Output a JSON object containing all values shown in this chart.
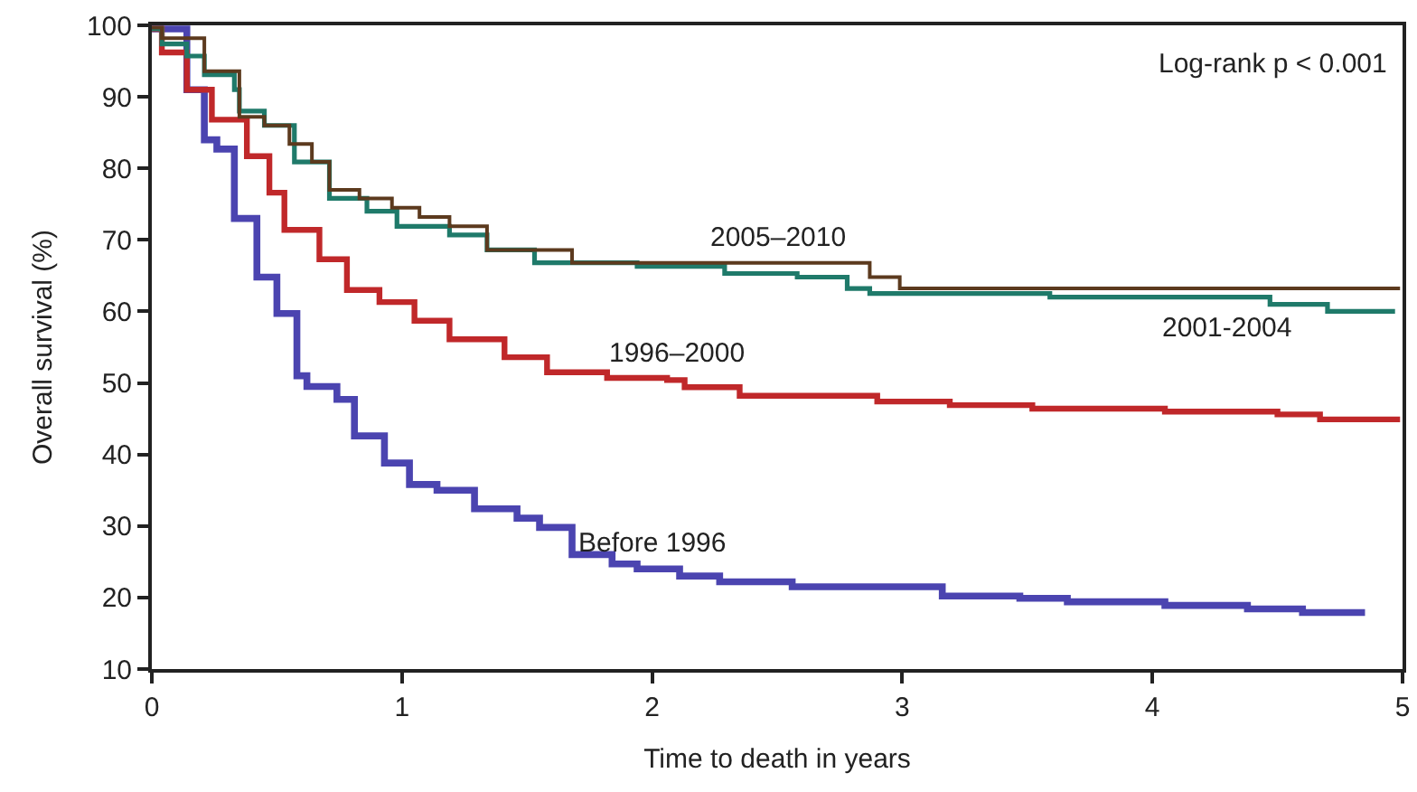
{
  "chart_data": {
    "type": "step",
    "xlabel": "Time to death in years",
    "ylabel": "Overall survival (%)",
    "xlim": [
      0,
      5
    ],
    "xticks": [
      0,
      1,
      2,
      3,
      4,
      5
    ],
    "ylim": [
      10,
      100
    ],
    "yticks": [
      10,
      20,
      30,
      40,
      50,
      60,
      70,
      80,
      90,
      100
    ],
    "legend": false,
    "marker": "none",
    "line_style": "solid",
    "series": [
      {
        "name": "Before 1996",
        "color": "#4b44b0",
        "x": [
          0,
          0.14,
          0.21,
          0.26,
          0.33,
          0.42,
          0.5,
          0.58,
          0.62,
          0.74,
          0.81,
          0.93,
          1.03,
          1.14,
          1.29,
          1.46,
          1.55,
          1.68,
          1.84,
          1.94,
          2.11,
          2.27,
          2.56,
          3.09,
          3.16,
          3.47,
          3.66,
          4.05,
          4.38,
          4.6,
          4.85
        ],
        "values": [
          99.5,
          91,
          84,
          82.7,
          73,
          64.8,
          59.7,
          51,
          49.5,
          47.7,
          42.6,
          38.8,
          35.8,
          35,
          32.4,
          31.1,
          29.8,
          26,
          24.7,
          24,
          23,
          22.2,
          21.5,
          21.5,
          20.2,
          19.9,
          19.4,
          18.9,
          18.4,
          17.9,
          17.9
        ]
      },
      {
        "name": "1996–2000",
        "color": "#c0282a",
        "x": [
          0,
          0.04,
          0.14,
          0.24,
          0.38,
          0.47,
          0.53,
          0.67,
          0.78,
          0.91,
          1.05,
          1.19,
          1.41,
          1.58,
          1.82,
          2.06,
          2.13,
          2.35,
          2.9,
          3.19,
          3.52,
          4.05,
          4.5,
          4.67,
          4.99
        ],
        "values": [
          99.5,
          96.2,
          91,
          86.8,
          81.7,
          76.6,
          71.4,
          67.3,
          63,
          61.3,
          58.7,
          56.1,
          53.6,
          51.5,
          50.7,
          50.4,
          49.4,
          48.2,
          47.4,
          46.9,
          46.4,
          46,
          45.6,
          44.9,
          44.9
        ]
      },
      {
        "name": "2001-2004",
        "color": "#1f7a6a",
        "x": [
          0,
          0.04,
          0.14,
          0.21,
          0.33,
          0.35,
          0.45,
          0.57,
          0.71,
          0.86,
          0.98,
          1.19,
          1.34,
          1.53,
          1.94,
          2.29,
          2.58,
          2.78,
          2.87,
          3.59,
          4.47,
          4.7,
          4.97
        ],
        "values": [
          99.5,
          97.4,
          95.7,
          93.1,
          91,
          88,
          86,
          80.9,
          75.8,
          74,
          71.9,
          70.7,
          68.6,
          66.8,
          66.3,
          65.3,
          64.8,
          63.2,
          62.5,
          62,
          61,
          60,
          60
        ]
      },
      {
        "name": "2005–2010",
        "color": "#5c3a1e",
        "x": [
          0,
          0.04,
          0.21,
          0.35,
          0.45,
          0.55,
          0.64,
          0.71,
          0.83,
          0.96,
          1.07,
          1.19,
          1.34,
          1.68,
          2.87,
          2.99,
          4.99
        ],
        "values": [
          99.7,
          98.2,
          93.6,
          87.2,
          86,
          83.4,
          80.9,
          77,
          75.8,
          74.5,
          73.2,
          71.9,
          68.6,
          66.8,
          64.8,
          63.2,
          63.2
        ]
      }
    ],
    "annotations": [
      "Log-rank p < 0.001"
    ]
  }
}
